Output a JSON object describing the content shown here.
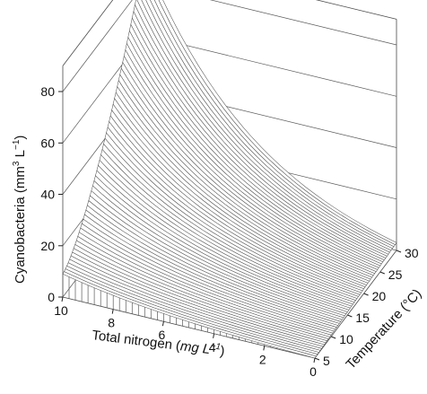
{
  "chart_data": {
    "type": "surface",
    "title": "",
    "xlabel": "Total nitrogen",
    "xlabel_unit_base": "mg L",
    "xlabel_unit_sup": "−1",
    "ylabel": "Temperature (°C)",
    "zlabel": "Cyanobacteria",
    "zlabel_unit_base": "mm",
    "zlabel_unit_sup1": "3",
    "zlabel_unit_mid": " L",
    "zlabel_unit_sup2": "−1",
    "x_ticks": [
      "10",
      "8",
      "6",
      "4",
      "2",
      "0"
    ],
    "x_tick_values": [
      10,
      8,
      6,
      4,
      2,
      0
    ],
    "y_ticks": [
      "5",
      "10",
      "15",
      "20",
      "25",
      "30"
    ],
    "y_tick_values": [
      5,
      10,
      15,
      20,
      25,
      30
    ],
    "z_ticks": [
      "0",
      "20",
      "40",
      "60",
      "80"
    ],
    "z_tick_values": [
      0,
      20,
      40,
      60,
      80
    ],
    "xlim": [
      0,
      10
    ],
    "ylim": [
      5,
      30
    ],
    "zlim": [
      0,
      80
    ],
    "grid": true,
    "surface_points": [
      {
        "x": 10,
        "y": 5,
        "z": 9
      },
      {
        "x": 10,
        "y": 30,
        "z": 90
      },
      {
        "x": 0,
        "y": 5,
        "z": 0
      },
      {
        "x": 0,
        "y": 30,
        "z": 3
      }
    ],
    "colors": {
      "surface_fill": "#ffffff",
      "surface_edge": "#555555",
      "frame": "#4a4a4a"
    }
  }
}
